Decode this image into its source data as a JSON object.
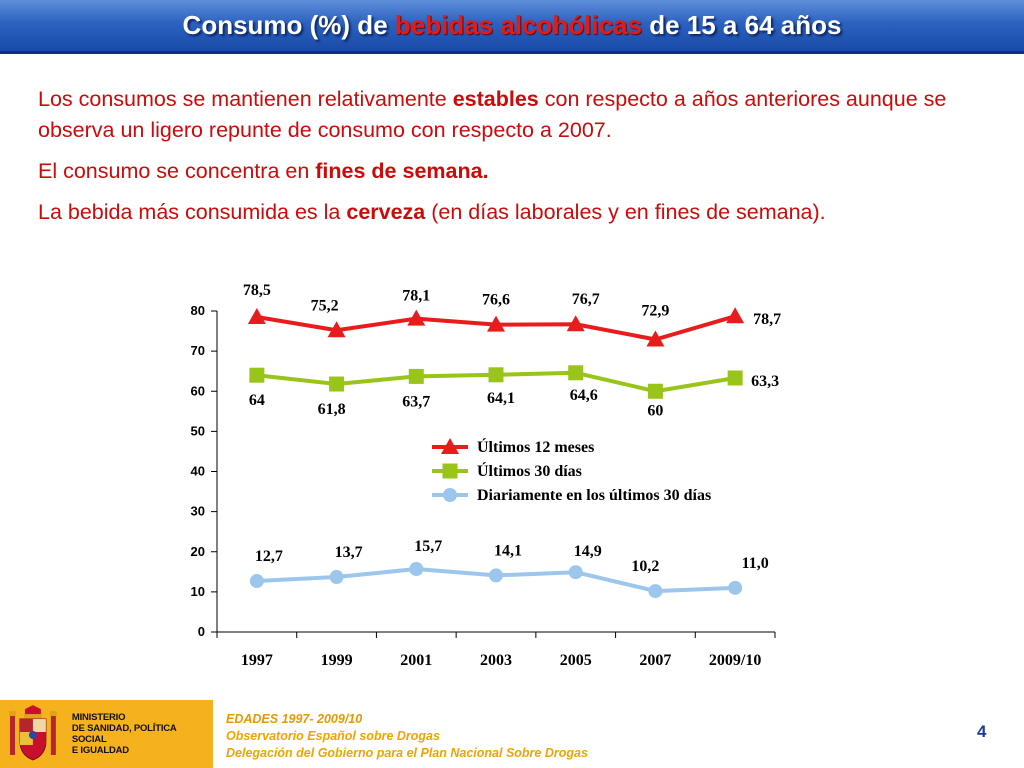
{
  "header": {
    "title_pre": "Consumo (%) de ",
    "title_highlight": "bebidas alcohólicas",
    "title_post": " de 15 a 64 años"
  },
  "text": {
    "p1_a": "Los consumos se mantienen relativamente ",
    "p1_b": "estables",
    "p1_c": " con respecto a años anteriores aunque se observa un ligero repunte de consumo con respecto a 2007.",
    "p2_a": "El consumo se concentra en ",
    "p2_b": "fines de semana.",
    "p3_a": "La bebida más consumida es la ",
    "p3_b": "cerveza",
    "p3_c": " (en días laborales y en fines de semana)."
  },
  "chart_data": {
    "type": "line",
    "title": "",
    "xlabel": "",
    "ylabel": "",
    "categories": [
      "1997",
      "1999",
      "2001",
      "2003",
      "2005",
      "2007",
      "2009/10"
    ],
    "ylim": [
      0,
      80
    ],
    "yticks": [
      "0",
      "10",
      "20",
      "30",
      "40",
      "50",
      "60",
      "70",
      "80"
    ],
    "grid": false,
    "legend_position": "center",
    "series": [
      {
        "name": "Últimos 12 meses",
        "marker": "triangle",
        "color": "#e81c1c",
        "values": [
          78.5,
          75.2,
          78.1,
          76.6,
          76.7,
          72.9,
          78.7
        ],
        "labels": [
          "78,5",
          "75,2",
          "78,1",
          "76,6",
          "76,7",
          "72,9",
          "78,7"
        ]
      },
      {
        "name": "Últimos 30 días",
        "marker": "square",
        "color": "#99c41a",
        "values": [
          64,
          61.8,
          63.7,
          64.1,
          64.6,
          60,
          63.3
        ],
        "labels": [
          "64",
          "61,8",
          "63,7",
          "64,1",
          "64,6",
          "60",
          "63,3"
        ]
      },
      {
        "name": "Diariamente en los últimos 30 días",
        "marker": "circle",
        "color": "#9cc6ec",
        "values": [
          12.7,
          13.7,
          15.7,
          14.1,
          14.9,
          10.2,
          11.0
        ],
        "labels": [
          "12,7",
          "13,7",
          "15,7",
          "14,1",
          "14,9",
          "10,2",
          "11,0"
        ]
      }
    ]
  },
  "footer": {
    "ministry_line1": "MINISTERIO",
    "ministry_line2": "DE SANIDAD, POLÍTICA SOCIAL",
    "ministry_line3": "E IGUALDAD",
    "source_title": "EDADES 1997- 2009/10",
    "source_line1": "Observatorio Español sobre Drogas",
    "source_line2": "Delegación del Gobierno para el Plan Nacional Sobre Drogas",
    "page_number": "4",
    "colors": {
      "accent": "#f6b21c",
      "title_bar": "#2c62c0"
    }
  }
}
